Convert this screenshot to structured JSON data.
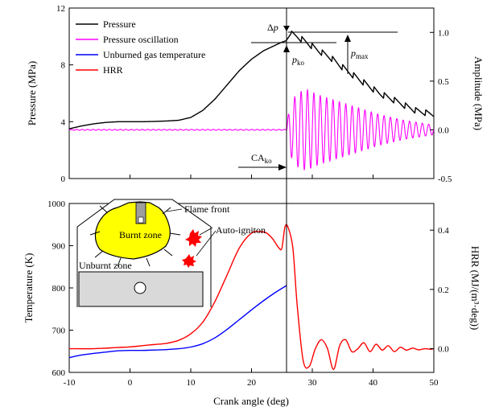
{
  "chart_data": [
    {
      "type": "line",
      "panel": "top",
      "x_range": [
        -10,
        50
      ],
      "y_left": {
        "label": "Pressure (MPa)",
        "lim": [
          0,
          12
        ],
        "ticks": [
          "0",
          "4",
          "8",
          "12"
        ]
      },
      "y_right": {
        "label": "Amplitude (MPa)",
        "lim": [
          -0.5,
          1.25
        ],
        "ticks": [
          "-0.5",
          "0.0",
          "0.5",
          "1.0"
        ]
      },
      "legend": [
        {
          "name": "Pressure",
          "color": "#000000"
        },
        {
          "name": "Pressure oscillation",
          "color": "#ff00ff"
        },
        {
          "name": "Unburned gas temperature",
          "color": "#0000ff"
        },
        {
          "name": "HRR",
          "color": "#ff0000"
        }
      ],
      "annotations": {
        "dp_pre": "Δ",
        "dp_var": "p",
        "pko_var": "p",
        "pko_sub": "ko",
        "pmax_var": "p",
        "pmax_sub": "max",
        "cako_text": "CA",
        "cako_sub": "ko"
      },
      "series": [
        {
          "name": "Pressure",
          "axis": "left",
          "x": [
            -10,
            -8,
            -6,
            -4,
            -2,
            0,
            2,
            4,
            6,
            8,
            10,
            12,
            14,
            16,
            18,
            20,
            22,
            24,
            25,
            25.7,
            26.5,
            27.5,
            29,
            31,
            33,
            35,
            37,
            39,
            41,
            43,
            45,
            47,
            49,
            50
          ],
          "y": [
            3.5,
            3.7,
            3.85,
            3.95,
            4.0,
            4.0,
            4.0,
            4.02,
            4.05,
            4.1,
            4.3,
            4.8,
            5.6,
            6.6,
            7.6,
            8.4,
            9.0,
            9.4,
            9.6,
            9.7,
            10.2,
            10.0,
            9.6,
            9.0,
            8.5,
            7.8,
            7.2,
            6.6,
            6.0,
            5.6,
            5.2,
            4.8,
            4.6,
            4.5
          ],
          "osc_start": 26.5,
          "osc_period": 1.7,
          "osc_amp": 0.22
        },
        {
          "name": "Pressure oscillation",
          "axis": "right",
          "x_flat_start": -10,
          "x_flat_end": 25.8,
          "flat_value": 0.0,
          "osc_start": 25.8,
          "osc_end": 50,
          "osc_period": 1.05,
          "envelope_x": [
            25.8,
            26.5,
            27.5,
            29,
            31,
            33,
            35,
            37,
            39,
            41,
            43,
            45,
            47,
            49,
            50
          ],
          "envelope_amp": [
            0.08,
            0.28,
            0.38,
            0.42,
            0.36,
            0.32,
            0.28,
            0.24,
            0.2,
            0.16,
            0.13,
            0.1,
            0.08,
            0.06,
            0.05
          ]
        }
      ]
    },
    {
      "type": "line",
      "panel": "bottom",
      "x_label": "Crank angle (deg)",
      "x_range": [
        -10,
        50
      ],
      "x_ticks": [
        "-10",
        "0",
        "10",
        "20",
        "30",
        "40",
        "50"
      ],
      "y_left": {
        "label": "Temperature (K)",
        "lim": [
          600,
          1000
        ],
        "ticks": [
          "600",
          "700",
          "800",
          "900",
          "1000"
        ]
      },
      "y_right": {
        "label": "HRR (MJ/(m³·deg))",
        "lim": [
          -0.08,
          0.49
        ],
        "ticks": [
          "0.0",
          "0.2",
          "0.4"
        ]
      },
      "series": [
        {
          "name": "Unburned gas temperature",
          "axis": "left",
          "x": [
            -10,
            -8,
            -6,
            -4,
            -2,
            0,
            2,
            4,
            6,
            8,
            10,
            12,
            14,
            16,
            18,
            20,
            22,
            24,
            25.8
          ],
          "y": [
            635,
            641,
            645,
            648,
            651,
            652,
            652,
            653,
            654,
            656,
            660,
            668,
            682,
            702,
            725,
            748,
            770,
            790,
            806
          ]
        },
        {
          "name": "HRR",
          "axis": "right",
          "x": [
            -10,
            -6,
            -2,
            0,
            2,
            4,
            6,
            8,
            10,
            12,
            14,
            16,
            18,
            20,
            21.5,
            22.5,
            23.5,
            24.5,
            25,
            25.5,
            26,
            26.8,
            27.5,
            28.5,
            29.5,
            30.5,
            31.5,
            32.5,
            33.5,
            34.5,
            35.5,
            36.5,
            37.5,
            38.5,
            39.5,
            40.5,
            41.5,
            42.5,
            43.5,
            44.5,
            45.5,
            46.5,
            47.5,
            48.5,
            49.5,
            50
          ],
          "y": [
            0.0,
            0.0,
            0.004,
            0.006,
            0.01,
            0.014,
            0.018,
            0.028,
            0.05,
            0.09,
            0.16,
            0.25,
            0.34,
            0.39,
            0.395,
            0.39,
            0.37,
            0.34,
            0.34,
            0.41,
            0.41,
            0.34,
            0.15,
            -0.04,
            -0.06,
            0.0,
            0.03,
            0.0,
            -0.07,
            0.01,
            0.03,
            -0.01,
            0.0,
            0.02,
            -0.01,
            0.015,
            -0.005,
            0.01,
            -0.01,
            0.005,
            -0.005,
            0.002,
            -0.004,
            0.0,
            -0.002,
            0.0
          ]
        }
      ],
      "inset": {
        "flame_front": "Flame front",
        "burnt_zone": "Burnt zone",
        "auto_ignition": "Auto-igniton",
        "unburnt_zone": "Unburnt zone"
      }
    }
  ]
}
